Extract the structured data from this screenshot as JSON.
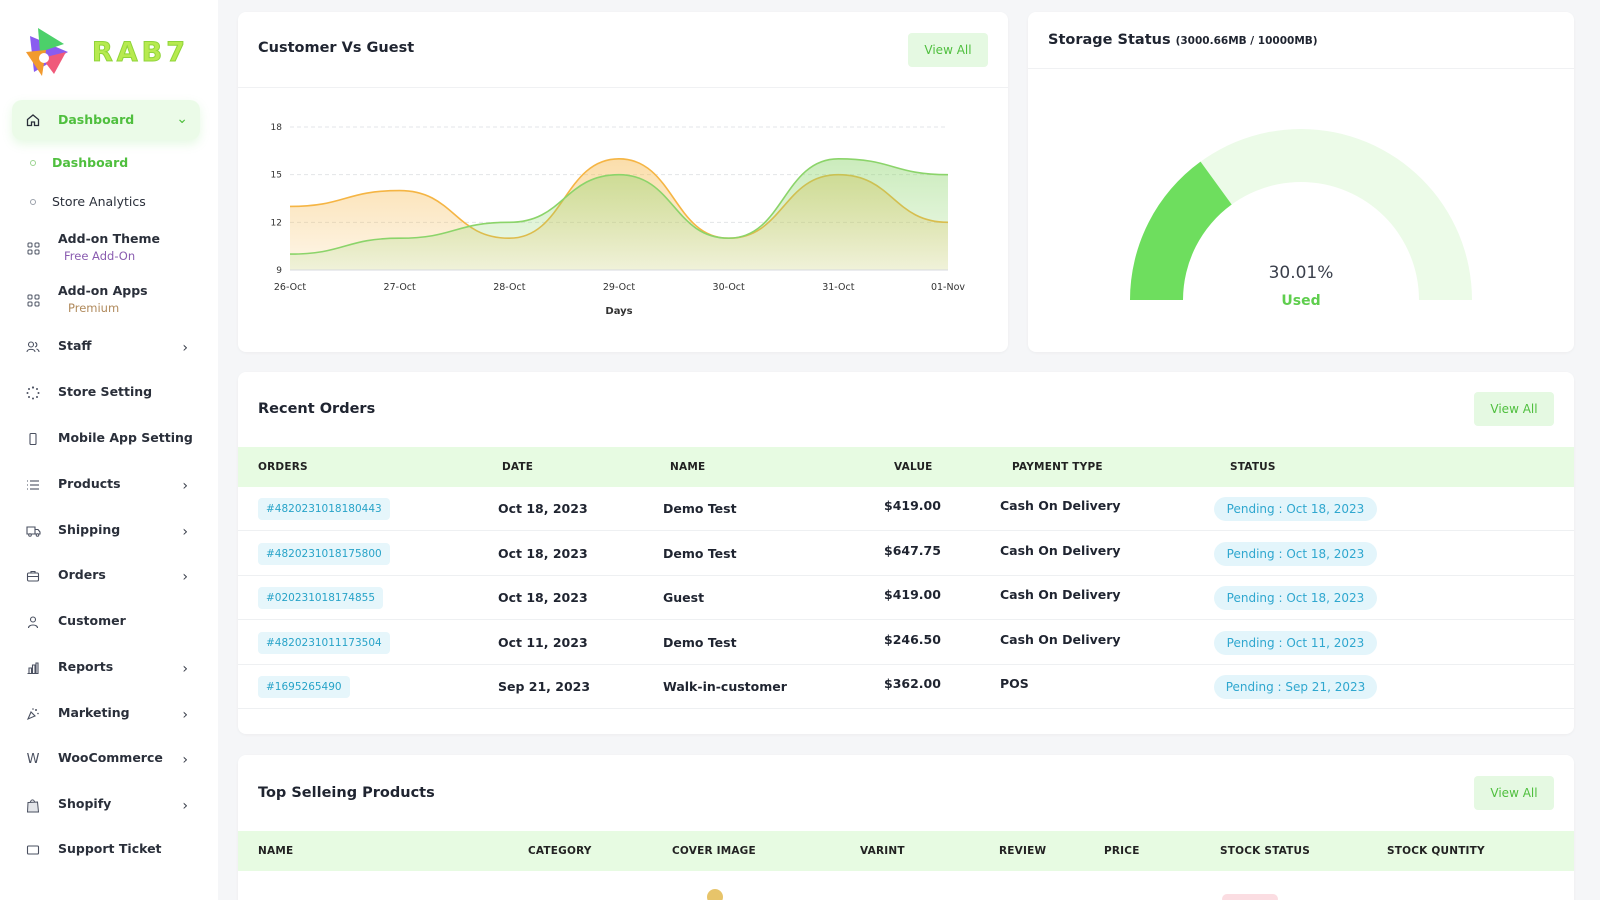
{
  "brand": {
    "name": "RAB7"
  },
  "sidebar": {
    "dashboard": {
      "label": "Dashboard"
    },
    "sub_items": [
      {
        "label": "Dashboard"
      },
      {
        "label": "Store Analytics"
      }
    ],
    "addon_theme": {
      "label": "Add-on Theme",
      "sub": "Free Add-On"
    },
    "addon_apps": {
      "label": "Add-on Apps",
      "sub": "Premium"
    },
    "items": [
      {
        "label": "Staff"
      },
      {
        "label": "Store Setting"
      },
      {
        "label": "Mobile App Setting"
      },
      {
        "label": "Products"
      },
      {
        "label": "Shipping"
      },
      {
        "label": "Orders"
      },
      {
        "label": "Customer"
      },
      {
        "label": "Reports"
      },
      {
        "label": "Marketing"
      },
      {
        "label": "WooCommerce"
      },
      {
        "label": "Shopify"
      },
      {
        "label": "Support Ticket"
      }
    ]
  },
  "customer_chart": {
    "title": "Customer Vs Guest",
    "view_all": "View All"
  },
  "chart_data": {
    "type": "area",
    "x": [
      "26-Oct",
      "27-Oct",
      "28-Oct",
      "29-Oct",
      "30-Oct",
      "31-Oct",
      "01-Nov"
    ],
    "xlabel": "Days",
    "ylabel": "",
    "yticks": [
      9,
      12,
      15,
      18
    ],
    "ylim": [
      9,
      18
    ],
    "grid": true,
    "series": [
      {
        "color": "#f5b544",
        "values": [
          13.0,
          14.0,
          11.0,
          16.0,
          11.0,
          15.0,
          12.0
        ]
      },
      {
        "color": "#8bd46a",
        "values": [
          10.0,
          11.0,
          12.0,
          15.0,
          11.0,
          16.0,
          15.0
        ]
      }
    ]
  },
  "storage": {
    "title": "Storage Status",
    "detail": "(3000.66MB / 10000MB)",
    "percent_text": "30.01%",
    "percent_value": 30.01,
    "used_label": "Used",
    "colors": {
      "used": "#6ede5e",
      "remaining": "#ecfbe8"
    }
  },
  "recent_orders": {
    "title": "Recent Orders",
    "view_all": "View All",
    "columns": [
      "ORDERS",
      "DATE",
      "NAME",
      "VALUE",
      "PAYMENT TYPE",
      "STATUS"
    ],
    "rows": [
      {
        "id": "#4820231018180443",
        "date": "Oct 18, 2023",
        "name": "Demo Test",
        "value": "$419.00",
        "payment": "Cash On Delivery",
        "status": "Pending : Oct 18, 2023"
      },
      {
        "id": "#4820231018175800",
        "date": "Oct 18, 2023",
        "name": "Demo Test",
        "value": "$647.75",
        "payment": "Cash On Delivery",
        "status": "Pending : Oct 18, 2023"
      },
      {
        "id": "#020231018174855",
        "date": "Oct 18, 2023",
        "name": "Guest",
        "value": "$419.00",
        "payment": "Cash On Delivery",
        "status": "Pending : Oct 18, 2023"
      },
      {
        "id": "#4820231011173504",
        "date": "Oct 11, 2023",
        "name": "Demo Test",
        "value": "$246.50",
        "payment": "Cash On Delivery",
        "status": "Pending : Oct 11, 2023"
      },
      {
        "id": "#1695265490",
        "date": "Sep 21, 2023",
        "name": "Walk-in-customer",
        "value": "$362.00",
        "payment": "POS",
        "status": "Pending : Sep 21, 2023"
      }
    ]
  },
  "top_products": {
    "title": "Top Selleing Products",
    "view_all": "View All",
    "columns": [
      "NAME",
      "CATEGORY",
      "COVER IMAGE",
      "VARINT",
      "REVIEW",
      "PRICE",
      "STOCK STATUS",
      "STOCK QUNTITY"
    ]
  }
}
